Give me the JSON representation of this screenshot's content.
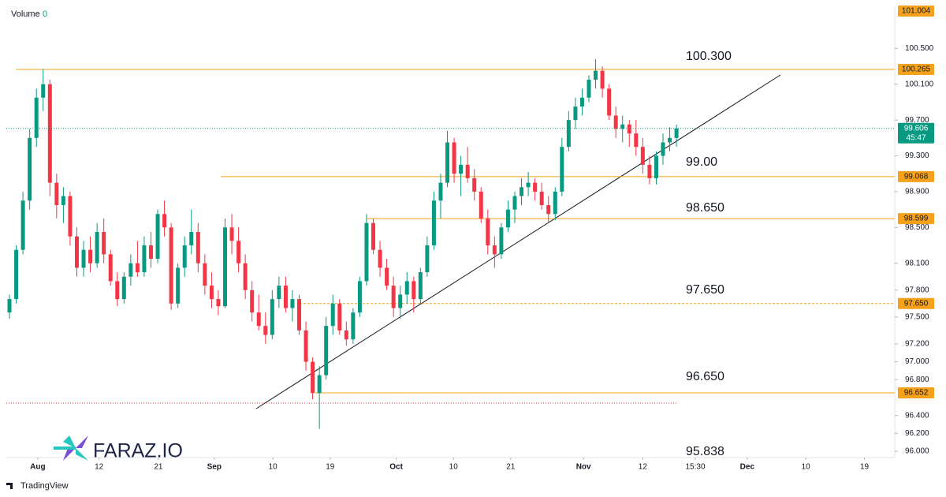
{
  "chart_data": {
    "type": "candlestick",
    "legend": {
      "label": "Volume",
      "value": "0"
    },
    "colors": {
      "up": "#089981",
      "down": "#f23645",
      "level": "#f5a11b"
    },
    "ylim": [
      95.93,
      100.97
    ],
    "yticks": [
      {
        "value": 100.5,
        "label": "100.500"
      },
      {
        "value": 100.1,
        "label": "100.100"
      },
      {
        "value": 99.7,
        "label": "99.700"
      },
      {
        "value": 99.3,
        "label": "99.300"
      },
      {
        "value": 98.9,
        "label": "98.900"
      },
      {
        "value": 98.5,
        "label": "98.500"
      },
      {
        "value": 98.1,
        "label": "98.100"
      },
      {
        "value": 97.8,
        "label": "97.800"
      },
      {
        "value": 97.5,
        "label": "97.500"
      },
      {
        "value": 97.2,
        "label": "97.200"
      },
      {
        "value": 97.0,
        "label": "97.000"
      },
      {
        "value": 96.8,
        "label": "96.800"
      },
      {
        "value": 96.4,
        "label": "96.400"
      },
      {
        "value": 96.2,
        "label": "96.200"
      },
      {
        "value": 96.0,
        "label": "96.000"
      }
    ],
    "xlim": [
      -0.47,
      131.4
    ],
    "xticks": [
      {
        "value": 4.2,
        "label": "Aug"
      },
      {
        "value": 13.3,
        "label": "12"
      },
      {
        "value": 22.1,
        "label": "21"
      },
      {
        "value": 30.4,
        "label": "Sep"
      },
      {
        "value": 39.1,
        "label": "10"
      },
      {
        "value": 47.6,
        "label": "19"
      },
      {
        "value": 57.4,
        "label": "Oct"
      },
      {
        "value": 65.9,
        "label": "10"
      },
      {
        "value": 74.4,
        "label": "21"
      },
      {
        "value": 85.2,
        "label": "Nov"
      },
      {
        "value": 94.0,
        "label": "12"
      },
      {
        "value": 101.8,
        "label": "15:30"
      },
      {
        "value": 109.5,
        "label": "Dec"
      },
      {
        "value": 118.2,
        "label": "10"
      },
      {
        "value": 126.9,
        "label": "19"
      }
    ],
    "candles": [
      [
        97.55,
        97.75,
        97.48,
        97.7
      ],
      [
        97.7,
        98.3,
        97.65,
        98.25
      ],
      [
        98.25,
        98.9,
        98.2,
        98.8
      ],
      [
        98.8,
        99.6,
        98.7,
        99.5
      ],
      [
        99.5,
        100.05,
        99.4,
        99.95
      ],
      [
        99.95,
        100.27,
        99.8,
        100.1
      ],
      [
        100.1,
        100.15,
        98.85,
        99.0
      ],
      [
        99.0,
        99.1,
        98.6,
        98.75
      ],
      [
        98.75,
        98.95,
        98.55,
        98.85
      ],
      [
        98.85,
        98.9,
        98.3,
        98.4
      ],
      [
        98.4,
        98.5,
        97.95,
        98.05
      ],
      [
        98.05,
        98.35,
        97.95,
        98.25
      ],
      [
        98.25,
        98.4,
        98.0,
        98.1
      ],
      [
        98.1,
        98.55,
        98.05,
        98.45
      ],
      [
        98.45,
        98.6,
        98.1,
        98.2
      ],
      [
        98.2,
        98.25,
        97.85,
        97.9
      ],
      [
        97.9,
        98.0,
        97.62,
        97.7
      ],
      [
        97.7,
        98.0,
        97.65,
        97.95
      ],
      [
        97.95,
        98.2,
        97.85,
        98.1
      ],
      [
        98.1,
        98.35,
        97.95,
        98.0
      ],
      [
        98.0,
        98.4,
        97.95,
        98.3
      ],
      [
        98.3,
        98.45,
        98.05,
        98.15
      ],
      [
        98.15,
        98.7,
        98.1,
        98.65
      ],
      [
        98.65,
        98.8,
        98.4,
        98.5
      ],
      [
        98.5,
        98.55,
        97.58,
        97.65
      ],
      [
        97.65,
        98.1,
        97.6,
        98.05
      ],
      [
        98.05,
        98.4,
        97.95,
        98.3
      ],
      [
        98.3,
        98.7,
        98.2,
        98.45
      ],
      [
        98.45,
        98.55,
        98.0,
        98.1
      ],
      [
        98.1,
        98.2,
        97.75,
        97.85
      ],
      [
        97.85,
        98.0,
        97.6,
        97.7
      ],
      [
        97.7,
        97.8,
        97.52,
        97.62
      ],
      [
        97.62,
        98.6,
        97.6,
        98.5
      ],
      [
        98.5,
        98.65,
        98.2,
        98.35
      ],
      [
        98.35,
        98.5,
        98.0,
        98.1
      ],
      [
        98.1,
        98.2,
        97.7,
        97.8
      ],
      [
        97.8,
        97.9,
        97.45,
        97.55
      ],
      [
        97.55,
        97.75,
        97.35,
        97.4
      ],
      [
        97.4,
        97.55,
        97.2,
        97.3
      ],
      [
        97.3,
        97.8,
        97.25,
        97.7
      ],
      [
        97.7,
        97.95,
        97.6,
        97.85
      ],
      [
        97.85,
        97.95,
        97.55,
        97.6
      ],
      [
        97.6,
        97.8,
        97.45,
        97.7
      ],
      [
        97.7,
        97.75,
        97.3,
        97.35
      ],
      [
        97.35,
        97.45,
        96.9,
        97.0
      ],
      [
        97.0,
        97.05,
        96.58,
        96.65
      ],
      [
        96.65,
        96.95,
        96.25,
        96.85
      ],
      [
        96.85,
        97.5,
        96.8,
        97.4
      ],
      [
        97.4,
        97.75,
        97.3,
        97.65
      ],
      [
        97.65,
        97.7,
        97.3,
        97.35
      ],
      [
        97.35,
        97.45,
        97.18,
        97.25
      ],
      [
        97.25,
        97.6,
        97.2,
        97.55
      ],
      [
        97.55,
        97.95,
        97.5,
        97.9
      ],
      [
        97.9,
        98.65,
        97.85,
        98.55
      ],
      [
        98.55,
        98.6,
        98.2,
        98.25
      ],
      [
        98.25,
        98.35,
        97.95,
        98.05
      ],
      [
        98.05,
        98.15,
        97.8,
        97.85
      ],
      [
        97.85,
        97.95,
        97.5,
        97.6
      ],
      [
        97.6,
        97.85,
        97.48,
        97.75
      ],
      [
        97.75,
        98.0,
        97.65,
        97.9
      ],
      [
        97.9,
        97.95,
        97.55,
        97.7
      ],
      [
        97.7,
        98.05,
        97.65,
        98.0
      ],
      [
        98.0,
        98.4,
        97.95,
        98.3
      ],
      [
        98.3,
        98.9,
        98.25,
        98.8
      ],
      [
        98.8,
        99.1,
        98.6,
        99.0
      ],
      [
        99.0,
        99.58,
        98.95,
        99.45
      ],
      [
        99.45,
        99.5,
        99.0,
        99.1
      ],
      [
        99.1,
        99.3,
        98.85,
        99.2
      ],
      [
        99.2,
        99.4,
        99.0,
        99.05
      ],
      [
        99.05,
        99.15,
        98.8,
        98.9
      ],
      [
        98.9,
        98.95,
        98.55,
        98.6
      ],
      [
        98.6,
        98.7,
        98.2,
        98.3
      ],
      [
        98.3,
        98.4,
        98.05,
        98.2
      ],
      [
        98.2,
        98.55,
        98.15,
        98.5
      ],
      [
        98.5,
        98.8,
        98.45,
        98.7
      ],
      [
        98.7,
        98.9,
        98.55,
        98.85
      ],
      [
        98.85,
        99.05,
        98.75,
        98.95
      ],
      [
        98.95,
        99.12,
        98.85,
        99.0
      ],
      [
        99.0,
        99.05,
        98.8,
        98.9
      ],
      [
        98.9,
        99.0,
        98.7,
        98.75
      ],
      [
        98.75,
        98.85,
        98.55,
        98.65
      ],
      [
        98.65,
        98.95,
        98.58,
        98.9
      ],
      [
        98.9,
        99.5,
        98.85,
        99.4
      ],
      [
        99.4,
        99.8,
        99.35,
        99.7
      ],
      [
        99.7,
        99.95,
        99.6,
        99.85
      ],
      [
        99.85,
        100.05,
        99.75,
        99.95
      ],
      [
        99.95,
        100.2,
        99.9,
        100.15
      ],
      [
        100.15,
        100.38,
        100.05,
        100.25
      ],
      [
        100.25,
        100.3,
        99.95,
        100.05
      ],
      [
        100.05,
        100.1,
        99.7,
        99.75
      ],
      [
        99.75,
        99.85,
        99.5,
        99.6
      ],
      [
        99.6,
        99.75,
        99.45,
        99.65
      ],
      [
        99.65,
        99.7,
        99.4,
        99.55
      ],
      [
        99.55,
        99.7,
        99.3,
        99.4
      ],
      [
        99.4,
        99.5,
        99.1,
        99.2
      ],
      [
        99.2,
        99.3,
        98.98,
        99.05
      ],
      [
        99.05,
        99.35,
        98.98,
        99.3
      ],
      [
        99.3,
        99.55,
        99.2,
        99.45
      ],
      [
        99.45,
        99.62,
        99.35,
        99.5
      ],
      [
        99.5,
        99.65,
        99.4,
        99.606
      ]
    ],
    "levels": [
      {
        "value": 101.004
      },
      {
        "value": 100.265
      },
      {
        "value": 99.068
      },
      {
        "value": 98.599
      },
      {
        "value": 97.65,
        "label": "97.650"
      },
      {
        "value": 96.652
      }
    ],
    "last_price": {
      "value": 99.606,
      "countdown": "45:47"
    },
    "annotations": [
      "100.300",
      "99.00",
      "98.650",
      "97.650",
      "96.650",
      "95.838"
    ],
    "watermark": "FARAZ.IO",
    "footer": "TradingView"
  }
}
